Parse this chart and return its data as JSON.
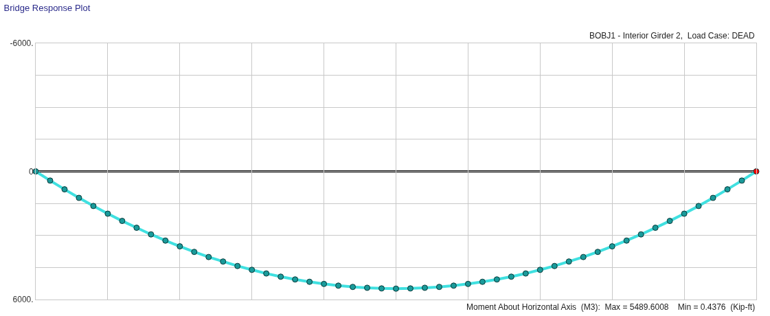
{
  "chart_data": {
    "type": "line",
    "title": "Bridge Response Plot",
    "annotations": [
      "BOBJ1 - Interior Girder 2,  Load Case: DEAD",
      "Moment About Horizontal Axis  (M3):  Max = 5489.6008    Min = 0.4376  (Kip-ft)"
    ],
    "categories": [
      null,
      null,
      null,
      null,
      null,
      null,
      null,
      null,
      null,
      null,
      null,
      null,
      null,
      null,
      null,
      null,
      null,
      null,
      null,
      null,
      null,
      null,
      null,
      null,
      null,
      null,
      null,
      null,
      null,
      null,
      null,
      null,
      null,
      null,
      null,
      null,
      null,
      null,
      null,
      null,
      null,
      null,
      null,
      null,
      null,
      null,
      null,
      null,
      null,
      null,
      null
    ],
    "series": [
      {
        "color": "#40e0e0",
        "colors": [
          "#1a9a9a",
          "#1a9a9a",
          "#1a9a9a",
          "#1a9a9a",
          "#1a9a9a",
          "#1a9a9a",
          "#1a9a9a",
          "#1a9a9a",
          "#1a9a9a",
          "#1a9a9a",
          "#1a9a9a",
          "#1a9a9a",
          "#1a9a9a",
          "#1a9a9a",
          "#1a9a9a",
          "#1a9a9a",
          "#1a9a9a",
          "#1a9a9a",
          "#1a9a9a",
          "#1a9a9a",
          "#1a9a9a",
          "#1a9a9a",
          "#1a9a9a",
          "#1a9a9a",
          "#1a9a9a",
          "#1a9a9a",
          "#1a9a9a",
          "#1a9a9a",
          "#1a9a9a",
          "#1a9a9a",
          "#1a9a9a",
          "#1a9a9a",
          "#1a9a9a",
          "#1a9a9a",
          "#1a9a9a",
          "#1a9a9a",
          "#1a9a9a",
          "#1a9a9a",
          "#1a9a9a",
          "#1a9a9a",
          "#1a9a9a",
          "#1a9a9a",
          "#1a9a9a",
          "#1a9a9a",
          "#1a9a9a",
          "#1a9a9a",
          "#1a9a9a",
          "#1a9a9a",
          "#1a9a9a",
          "#1a9a9a",
          "#ff0000"
        ],
        "values": [
          0,
          430,
          840,
          1240,
          1620,
          1980,
          2320,
          2640,
          2950,
          3240,
          3510,
          3770,
          4010,
          4220,
          4430,
          4610,
          4780,
          4930,
          5060,
          5170,
          5270,
          5350,
          5410,
          5450,
          5480,
          5490,
          5480,
          5450,
          5410,
          5350,
          5270,
          5170,
          5060,
          4930,
          4780,
          4610,
          4430,
          4220,
          4010,
          3770,
          3510,
          3240,
          2950,
          2640,
          2320,
          1980,
          1620,
          1240,
          840,
          430,
          0
        ]
      }
    ],
    "ylim": [
      6000,
      -6000
    ],
    "yticks": [
      {
        "value": -6000,
        "label": "-6000."
      },
      {
        "value": -4500,
        "label": null
      },
      {
        "value": -3000,
        "label": null
      },
      {
        "value": -1500,
        "label": null
      },
      {
        "value": 0,
        "label": "0"
      },
      {
        "value": 1500,
        "label": null
      },
      {
        "value": 3000,
        "label": null
      },
      {
        "value": 4500,
        "label": null
      },
      {
        "value": 6000,
        "label": "6000."
      }
    ],
    "ref_lines": [
      {
        "axis": "y",
        "value": 0,
        "color": "#000000"
      }
    ],
    "grid": true,
    "marker": "circle",
    "line_style": "solid",
    "tick_labels": "y",
    "legend": false
  }
}
